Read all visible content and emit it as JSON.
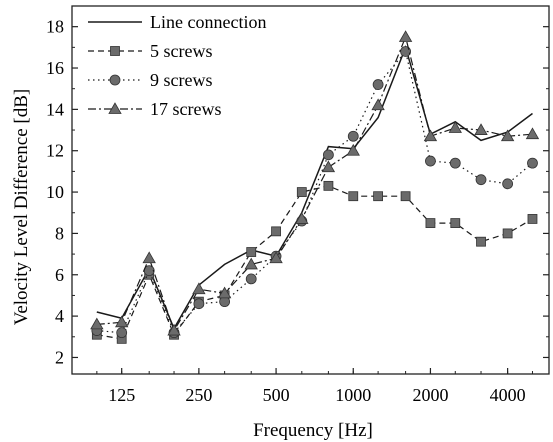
{
  "chart_data": {
    "type": "line",
    "xlabel": "Frequency [Hz]",
    "ylabel": "Velocity Level Difference [dB]",
    "x_scale": "log",
    "x": [
      100,
      125,
      160,
      200,
      250,
      315,
      400,
      500,
      630,
      800,
      1000,
      1250,
      1600,
      2000,
      2500,
      3150,
      4000,
      5000
    ],
    "xlim": [
      80,
      5800
    ],
    "ylim": [
      1.2,
      19
    ],
    "x_ticks": [
      125,
      250,
      500,
      1000,
      2000,
      4000
    ],
    "x_tick_labels": [
      "125",
      "250",
      "500",
      "1000",
      "2000",
      "4000"
    ],
    "y_ticks": [
      2,
      4,
      6,
      8,
      10,
      12,
      14,
      16,
      18
    ],
    "y_tick_labels": [
      "2",
      "4",
      "6",
      "8",
      "10",
      "12",
      "14",
      "16",
      "18"
    ],
    "legend_position": "top-left",
    "grid": false,
    "series": [
      {
        "name": "Line connection",
        "marker": "none",
        "dash": "solid",
        "color": "#1a1a1a",
        "values": [
          4.2,
          3.9,
          6.3,
          3.4,
          5.5,
          6.5,
          7.2,
          6.9,
          9.0,
          12.2,
          12.1,
          13.6,
          17.0,
          12.8,
          13.4,
          12.5,
          12.9,
          13.8
        ]
      },
      {
        "name": "5 screws",
        "marker": "square",
        "dash": "dashed",
        "color": "#1a1a1a",
        "values": [
          3.1,
          2.9,
          6.0,
          3.1,
          4.7,
          5.0,
          7.1,
          8.1,
          10.0,
          10.3,
          9.8,
          9.8,
          9.8,
          8.5,
          8.5,
          7.6,
          8.0,
          8.7
        ]
      },
      {
        "name": "9 screws",
        "marker": "circle",
        "dash": "dotted",
        "color": "#1a1a1a",
        "values": [
          3.3,
          3.2,
          6.2,
          3.2,
          4.6,
          4.7,
          5.8,
          6.9,
          8.6,
          11.8,
          12.7,
          15.2,
          16.8,
          11.5,
          11.4,
          10.6,
          10.4,
          11.4
        ]
      },
      {
        "name": "17 screws",
        "marker": "triangle",
        "dash": "dashdot",
        "color": "#1a1a1a",
        "values": [
          3.6,
          3.7,
          6.8,
          3.3,
          5.3,
          5.1,
          6.5,
          6.8,
          8.7,
          11.2,
          12.0,
          14.2,
          17.5,
          12.7,
          13.1,
          13.0,
          12.7,
          12.8
        ]
      }
    ]
  }
}
